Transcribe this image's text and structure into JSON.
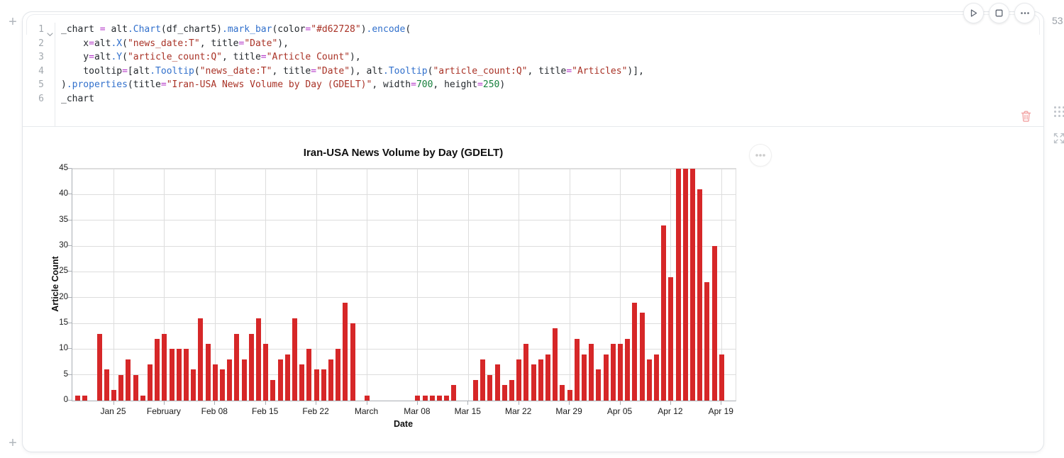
{
  "page": {
    "add_cell_top_label": "+",
    "add_cell_bottom_label": "+",
    "runtime_badge": "53"
  },
  "cell": {
    "toolbar": {
      "icons": [
        "play-icon",
        "stop-square-icon",
        "ellipsis-icon"
      ]
    },
    "editor": {
      "line_numbers": [
        "1",
        "2",
        "3",
        "4",
        "5",
        "6"
      ],
      "lines": [
        [
          {
            "t": "_chart ",
            "c": "p"
          },
          {
            "t": "=",
            "c": "o"
          },
          {
            "t": " alt",
            "c": "p"
          },
          {
            "t": ".Chart",
            "c": "f"
          },
          {
            "t": "(df_chart5)",
            "c": "p"
          },
          {
            "t": ".mark_bar",
            "c": "f"
          },
          {
            "t": "(color",
            "c": "p"
          },
          {
            "t": "=",
            "c": "o"
          },
          {
            "t": "\"#d62728\"",
            "c": "s"
          },
          {
            "t": ")",
            "c": "p"
          },
          {
            "t": ".encode",
            "c": "f"
          },
          {
            "t": "(",
            "c": "p"
          }
        ],
        [
          {
            "t": "    x",
            "c": "p"
          },
          {
            "t": "=",
            "c": "o"
          },
          {
            "t": "alt",
            "c": "p"
          },
          {
            "t": ".X",
            "c": "f"
          },
          {
            "t": "(",
            "c": "p"
          },
          {
            "t": "\"news_date:T\"",
            "c": "s"
          },
          {
            "t": ", title",
            "c": "p"
          },
          {
            "t": "=",
            "c": "o"
          },
          {
            "t": "\"Date\"",
            "c": "s"
          },
          {
            "t": "),",
            "c": "p"
          }
        ],
        [
          {
            "t": "    y",
            "c": "p"
          },
          {
            "t": "=",
            "c": "o"
          },
          {
            "t": "alt",
            "c": "p"
          },
          {
            "t": ".Y",
            "c": "f"
          },
          {
            "t": "(",
            "c": "p"
          },
          {
            "t": "\"article_count:Q\"",
            "c": "s"
          },
          {
            "t": ", title",
            "c": "p"
          },
          {
            "t": "=",
            "c": "o"
          },
          {
            "t": "\"Article Count\"",
            "c": "s"
          },
          {
            "t": "),",
            "c": "p"
          }
        ],
        [
          {
            "t": "    tooltip",
            "c": "p"
          },
          {
            "t": "=",
            "c": "o"
          },
          {
            "t": "[alt",
            "c": "p"
          },
          {
            "t": ".Tooltip",
            "c": "f"
          },
          {
            "t": "(",
            "c": "p"
          },
          {
            "t": "\"news_date:T\"",
            "c": "s"
          },
          {
            "t": ", title",
            "c": "p"
          },
          {
            "t": "=",
            "c": "o"
          },
          {
            "t": "\"Date\"",
            "c": "s"
          },
          {
            "t": "), alt",
            "c": "p"
          },
          {
            "t": ".Tooltip",
            "c": "f"
          },
          {
            "t": "(",
            "c": "p"
          },
          {
            "t": "\"article_count:Q\"",
            "c": "s"
          },
          {
            "t": ", title",
            "c": "p"
          },
          {
            "t": "=",
            "c": "o"
          },
          {
            "t": "\"Articles\"",
            "c": "s"
          },
          {
            "t": ")],",
            "c": "p"
          }
        ],
        [
          {
            "t": ")",
            "c": "p"
          },
          {
            "t": ".properties",
            "c": "f"
          },
          {
            "t": "(title",
            "c": "p"
          },
          {
            "t": "=",
            "c": "o"
          },
          {
            "t": "\"Iran-USA News Volume by Day (GDELT)\"",
            "c": "s"
          },
          {
            "t": ", width",
            "c": "p"
          },
          {
            "t": "=",
            "c": "o"
          },
          {
            "t": "700",
            "c": "n"
          },
          {
            "t": ", height",
            "c": "p"
          },
          {
            "t": "=",
            "c": "o"
          },
          {
            "t": "250",
            "c": "n"
          },
          {
            "t": ")",
            "c": "p"
          }
        ],
        [
          {
            "t": "_chart",
            "c": "p"
          }
        ]
      ]
    },
    "delete_icon": "trash-icon"
  },
  "output": {
    "menu_icon": "ellipsis-icon"
  },
  "chart_data": {
    "type": "bar",
    "title": "Iran-USA News Volume by Day (GDELT)",
    "xlabel": "Date",
    "ylabel": "Article Count",
    "bar_color": "#d62728",
    "ylim": [
      0,
      45
    ],
    "yticks": [
      0,
      5,
      10,
      15,
      20,
      25,
      30,
      35,
      40,
      45
    ],
    "grid": true,
    "x_tick_labels": [
      {
        "i": 5,
        "label": "Jan 25"
      },
      {
        "i": 12,
        "label": "February"
      },
      {
        "i": 19,
        "label": "Feb 08"
      },
      {
        "i": 26,
        "label": "Feb 15"
      },
      {
        "i": 33,
        "label": "Feb 22"
      },
      {
        "i": 40,
        "label": "March"
      },
      {
        "i": 47,
        "label": "Mar 08"
      },
      {
        "i": 54,
        "label": "Mar 15"
      },
      {
        "i": 61,
        "label": "Mar 22"
      },
      {
        "i": 68,
        "label": "Mar 29"
      },
      {
        "i": 75,
        "label": "Apr 05"
      },
      {
        "i": 82,
        "label": "Apr 12"
      },
      {
        "i": 89,
        "label": "Apr 19"
      }
    ],
    "dates": [
      "Jan 20",
      "Jan 21",
      "Jan 22",
      "Jan 23",
      "Jan 24",
      "Jan 25",
      "Jan 26",
      "Jan 27",
      "Jan 28",
      "Jan 29",
      "Jan 30",
      "Jan 31",
      "Feb 01",
      "Feb 02",
      "Feb 03",
      "Feb 04",
      "Feb 05",
      "Feb 06",
      "Feb 07",
      "Feb 08",
      "Feb 09",
      "Feb 10",
      "Feb 11",
      "Feb 12",
      "Feb 13",
      "Feb 14",
      "Feb 15",
      "Feb 16",
      "Feb 17",
      "Feb 18",
      "Feb 19",
      "Feb 20",
      "Feb 21",
      "Feb 22",
      "Feb 23",
      "Feb 24",
      "Feb 25",
      "Feb 26",
      "Feb 27",
      "Feb 28",
      "Mar 01",
      "Mar 02",
      "Mar 03",
      "Mar 04",
      "Mar 05",
      "Mar 06",
      "Mar 07",
      "Mar 08",
      "Mar 09",
      "Mar 10",
      "Mar 11",
      "Mar 12",
      "Mar 13",
      "Mar 14",
      "Mar 15",
      "Mar 16",
      "Mar 17",
      "Mar 18",
      "Mar 19",
      "Mar 20",
      "Mar 21",
      "Mar 22",
      "Mar 23",
      "Mar 24",
      "Mar 25",
      "Mar 26",
      "Mar 27",
      "Mar 28",
      "Mar 29",
      "Mar 30",
      "Mar 31",
      "Apr 01",
      "Apr 02",
      "Apr 03",
      "Apr 04",
      "Apr 05",
      "Apr 06",
      "Apr 07",
      "Apr 08",
      "Apr 09",
      "Apr 10",
      "Apr 11",
      "Apr 12",
      "Apr 13",
      "Apr 14",
      "Apr 15",
      "Apr 16",
      "Apr 17",
      "Apr 18",
      "Apr 19"
    ],
    "values": [
      1,
      1,
      0,
      13,
      6,
      2,
      5,
      8,
      5,
      1,
      7,
      12,
      13,
      10,
      10,
      10,
      6,
      16,
      11,
      7,
      6,
      8,
      13,
      8,
      13,
      16,
      11,
      4,
      8,
      9,
      16,
      7,
      10,
      6,
      6,
      8,
      10,
      19,
      15,
      0,
      1,
      0,
      0,
      0,
      0,
      0,
      0,
      1,
      1,
      1,
      1,
      1,
      3,
      0,
      0,
      4,
      8,
      5,
      7,
      3,
      4,
      8,
      11,
      7,
      8,
      9,
      14,
      3,
      2,
      12,
      9,
      11,
      6,
      9,
      11,
      11,
      12,
      19,
      17,
      8,
      9,
      34,
      24,
      45,
      45,
      45,
      41,
      23,
      30,
      9
    ]
  },
  "side_controls": {
    "drag_handle": "drag-dots-icon",
    "expand": "expand-arrows-icon"
  }
}
